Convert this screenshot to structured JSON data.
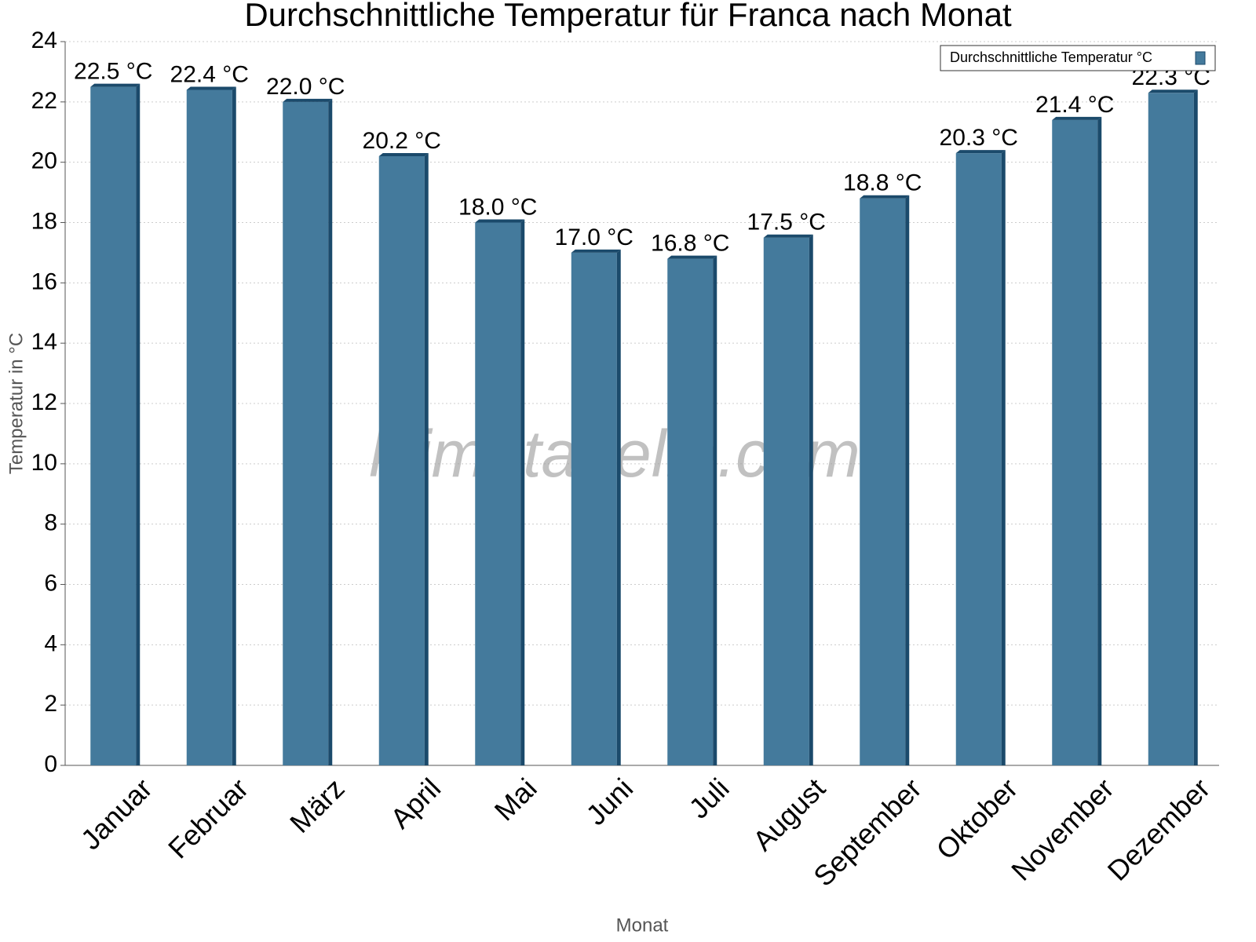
{
  "chart_data": {
    "type": "bar",
    "title": "Durchschnittliche Temperatur für Franca nach Monat",
    "x_label": "Monat",
    "y_label": "Temperatur in °C",
    "watermark": "klimatabelle.com",
    "categories": [
      "Januar",
      "Februar",
      "März",
      "April",
      "Mai",
      "Juni",
      "Juli",
      "August",
      "September",
      "Oktober",
      "November",
      "Dezember"
    ],
    "series": [
      {
        "name": "Durchschnittliche Temperatur °C",
        "color": "#447a9c",
        "values": [
          22.5,
          22.4,
          22.0,
          20.2,
          18.0,
          17.0,
          16.8,
          17.5,
          18.8,
          20.3,
          21.4,
          22.3
        ],
        "value_labels": [
          "22.5 °C",
          "22.4 °C",
          "22.0 °C",
          "20.2 °C",
          "18.0 °C",
          "17.0 °C",
          "16.8 °C",
          "17.5 °C",
          "18.8 °C",
          "20.3 °C",
          "21.4 °C",
          "22.3 °C"
        ]
      }
    ],
    "ylim": [
      0,
      24
    ],
    "yticks": [
      0,
      2,
      4,
      6,
      8,
      10,
      12,
      14,
      16,
      18,
      20,
      22,
      24
    ],
    "grid": true,
    "legend": "top-right"
  }
}
